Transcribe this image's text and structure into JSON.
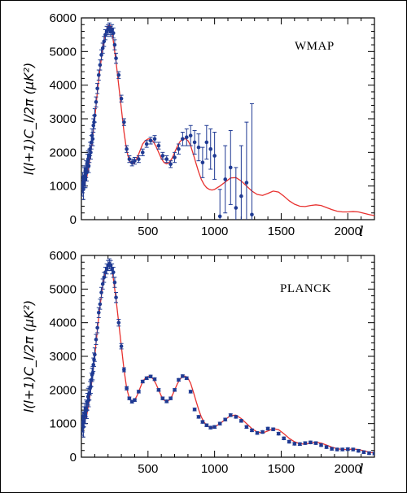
{
  "chart_data": [
    {
      "type": "scatter",
      "title": "WMAP",
      "xlabel": "l",
      "ylabel": "l(l+1)C_l/2π (μK²)",
      "xlim": [
        0,
        2200
      ],
      "ylim": [
        0,
        6000
      ],
      "x_ticks": [
        500,
        1000,
        1500,
        2000
      ],
      "y_ticks": [
        0,
        1000,
        2000,
        3000,
        4000,
        5000,
        6000
      ],
      "model_color": "#e8312f",
      "point_color": "#1f3a93",
      "series": [
        {
          "kind": "model",
          "x": [
            2,
            20,
            40,
            60,
            80,
            100,
            120,
            140,
            160,
            180,
            200,
            210,
            220,
            230,
            240,
            260,
            280,
            300,
            320,
            340,
            360,
            380,
            400,
            420,
            440,
            460,
            480,
            500,
            520,
            540,
            560,
            580,
            600,
            620,
            640,
            660,
            680,
            700,
            720,
            740,
            760,
            780,
            800,
            820,
            840,
            860,
            880,
            900,
            920,
            940,
            960,
            980,
            1000,
            1040,
            1080,
            1120,
            1160,
            1200,
            1240,
            1280,
            1320,
            1360,
            1400,
            1440,
            1480,
            1520,
            1560,
            1600,
            1640,
            1680,
            1720,
            1760,
            1800,
            1840,
            1880,
            1920,
            1960,
            2000,
            2040,
            2080,
            2120,
            2160,
            2200
          ],
          "y": [
            900,
            1000,
            1250,
            1700,
            2300,
            3000,
            3800,
            4500,
            5100,
            5550,
            5750,
            5800,
            5750,
            5600,
            5300,
            4700,
            4000,
            3300,
            2600,
            2050,
            1750,
            1650,
            1700,
            1850,
            2050,
            2250,
            2350,
            2400,
            2400,
            2320,
            2180,
            2000,
            1820,
            1700,
            1660,
            1700,
            1820,
            2000,
            2180,
            2320,
            2400,
            2410,
            2350,
            2200,
            1950,
            1680,
            1420,
            1200,
            1050,
            950,
            900,
            880,
            900,
            1000,
            1120,
            1240,
            1250,
            1150,
            1000,
            850,
            750,
            720,
            780,
            850,
            820,
            700,
            560,
            460,
            400,
            390,
            420,
            440,
            420,
            360,
            300,
            250,
            230,
            230,
            240,
            230,
            190,
            150,
            120
          ]
        },
        {
          "kind": "points",
          "x": [
            5,
            10,
            15,
            20,
            25,
            30,
            35,
            40,
            45,
            50,
            55,
            60,
            65,
            70,
            75,
            80,
            85,
            90,
            95,
            100,
            110,
            120,
            130,
            140,
            150,
            160,
            170,
            180,
            190,
            200,
            210,
            220,
            230,
            240,
            250,
            260,
            280,
            300,
            320,
            340,
            360,
            380,
            400,
            430,
            460,
            490,
            520,
            550,
            580,
            610,
            640,
            670,
            700,
            730,
            760,
            790,
            820,
            850,
            880,
            910,
            940,
            970,
            1000,
            1040,
            1080,
            1120,
            1160,
            1200,
            1240,
            1280
          ],
          "y": [
            1000,
            1100,
            900,
            1250,
            1300,
            1200,
            1500,
            1400,
            1700,
            1800,
            1600,
            1900,
            2100,
            2000,
            2300,
            2500,
            2400,
            2800,
            2900,
            3100,
            3500,
            3900,
            4300,
            4600,
            4900,
            5100,
            5300,
            5500,
            5600,
            5650,
            5700,
            5600,
            5650,
            5550,
            5200,
            4800,
            4300,
            3600,
            2900,
            2100,
            1800,
            1700,
            1750,
            1800,
            2000,
            2250,
            2350,
            2400,
            2200,
            1900,
            1800,
            1650,
            1850,
            2100,
            2400,
            2450,
            2500,
            2300,
            2150,
            1700,
            2300,
            2100,
            1900,
            100,
            1200,
            1550,
            350,
            700,
            1100,
            150
          ],
          "err": [
            300,
            300,
            300,
            300,
            300,
            250,
            250,
            250,
            250,
            250,
            200,
            200,
            200,
            200,
            200,
            200,
            200,
            200,
            200,
            200,
            150,
            150,
            150,
            150,
            150,
            150,
            150,
            150,
            150,
            150,
            150,
            150,
            150,
            150,
            150,
            150,
            100,
            100,
            100,
            100,
            100,
            100,
            100,
            100,
            100,
            100,
            100,
            100,
            100,
            100,
            100,
            100,
            150,
            150,
            200,
            250,
            300,
            350,
            400,
            450,
            500,
            600,
            700,
            800,
            1000,
            1100,
            1200,
            1500,
            1800,
            3300
          ]
        }
      ]
    },
    {
      "type": "scatter",
      "title": "PLANCK",
      "xlabel": "l",
      "ylabel": "l(l+1)C_l/2π (μK²)",
      "xlim": [
        0,
        2200
      ],
      "ylim": [
        0,
        6000
      ],
      "x_ticks": [
        500,
        1000,
        1500,
        2000
      ],
      "y_ticks": [
        0,
        1000,
        2000,
        3000,
        4000,
        5000,
        6000
      ],
      "model_color": "#e8312f",
      "point_color": "#1f3a93",
      "series": [
        {
          "kind": "model",
          "x": [
            2,
            20,
            40,
            60,
            80,
            100,
            120,
            140,
            160,
            180,
            200,
            210,
            220,
            230,
            240,
            260,
            280,
            300,
            320,
            340,
            360,
            380,
            400,
            420,
            440,
            460,
            480,
            500,
            520,
            540,
            560,
            580,
            600,
            620,
            640,
            660,
            680,
            700,
            720,
            740,
            760,
            780,
            800,
            820,
            840,
            860,
            880,
            900,
            920,
            940,
            960,
            980,
            1000,
            1040,
            1080,
            1120,
            1160,
            1200,
            1240,
            1280,
            1320,
            1360,
            1400,
            1440,
            1480,
            1520,
            1560,
            1600,
            1640,
            1680,
            1720,
            1760,
            1800,
            1840,
            1880,
            1920,
            1960,
            2000,
            2040,
            2080,
            2120,
            2160,
            2200
          ],
          "y": [
            900,
            1000,
            1250,
            1700,
            2300,
            3000,
            3800,
            4500,
            5100,
            5550,
            5750,
            5800,
            5750,
            5600,
            5300,
            4700,
            4000,
            3300,
            2600,
            2050,
            1750,
            1650,
            1700,
            1850,
            2050,
            2250,
            2350,
            2400,
            2400,
            2320,
            2180,
            2000,
            1820,
            1700,
            1660,
            1700,
            1820,
            2000,
            2180,
            2320,
            2400,
            2410,
            2350,
            2200,
            1950,
            1680,
            1420,
            1200,
            1050,
            950,
            900,
            880,
            900,
            1000,
            1120,
            1240,
            1250,
            1150,
            1000,
            850,
            750,
            720,
            780,
            850,
            820,
            700,
            560,
            460,
            400,
            390,
            420,
            440,
            420,
            360,
            300,
            250,
            230,
            230,
            240,
            230,
            190,
            150,
            120
          ]
        },
        {
          "kind": "points",
          "x": [
            5,
            10,
            15,
            20,
            25,
            30,
            35,
            40,
            45,
            50,
            55,
            60,
            65,
            70,
            75,
            80,
            85,
            90,
            95,
            100,
            110,
            120,
            130,
            140,
            150,
            160,
            170,
            180,
            190,
            200,
            210,
            220,
            230,
            240,
            250,
            260,
            280,
            300,
            320,
            340,
            360,
            380,
            400,
            430,
            460,
            490,
            520,
            550,
            580,
            610,
            640,
            670,
            700,
            730,
            760,
            790,
            820,
            850,
            880,
            910,
            940,
            970,
            1000,
            1040,
            1080,
            1120,
            1160,
            1200,
            1240,
            1280,
            1320,
            1360,
            1400,
            1440,
            1480,
            1520,
            1560,
            1600,
            1640,
            1680,
            1720,
            1760,
            1800,
            1840,
            1880,
            1920,
            1960,
            2000,
            2040,
            2080,
            2120,
            2160,
            2200
          ],
          "y": [
            950,
            1050,
            900,
            1200,
            1300,
            1250,
            1450,
            1400,
            1650,
            1800,
            1700,
            1900,
            2050,
            2100,
            2300,
            2450,
            2500,
            2750,
            2900,
            3050,
            3500,
            3850,
            4300,
            4550,
            4900,
            5150,
            5350,
            5500,
            5600,
            5700,
            5750,
            5700,
            5600,
            5500,
            5200,
            4750,
            4000,
            3300,
            2600,
            2050,
            1750,
            1650,
            1700,
            1950,
            2250,
            2350,
            2400,
            2320,
            2000,
            1750,
            1660,
            1750,
            2000,
            2300,
            2410,
            2350,
            1950,
            1420,
            1200,
            1050,
            950,
            880,
            900,
            1000,
            1120,
            1250,
            1200,
            1080,
            900,
            800,
            720,
            750,
            850,
            830,
            700,
            560,
            460,
            400,
            390,
            420,
            440,
            420,
            360,
            300,
            250,
            230,
            230,
            240,
            230,
            190,
            150,
            120,
            110
          ],
          "err": [
            300,
            300,
            300,
            300,
            300,
            250,
            250,
            250,
            250,
            250,
            200,
            200,
            200,
            200,
            200,
            200,
            200,
            200,
            200,
            200,
            150,
            150,
            150,
            150,
            150,
            150,
            150,
            150,
            150,
            150,
            150,
            150,
            150,
            150,
            150,
            150,
            100,
            80,
            60,
            50,
            40,
            40,
            40,
            40,
            40,
            40,
            40,
            40,
            40,
            40,
            40,
            40,
            40,
            40,
            40,
            40,
            40,
            40,
            40,
            40,
            40,
            40,
            40,
            40,
            40,
            40,
            40,
            40,
            40,
            40,
            40,
            40,
            40,
            40,
            40,
            40,
            40,
            40,
            40,
            40,
            40,
            40,
            40,
            40,
            40,
            40,
            40,
            40,
            40,
            40,
            40,
            40,
            40
          ]
        }
      ]
    }
  ]
}
